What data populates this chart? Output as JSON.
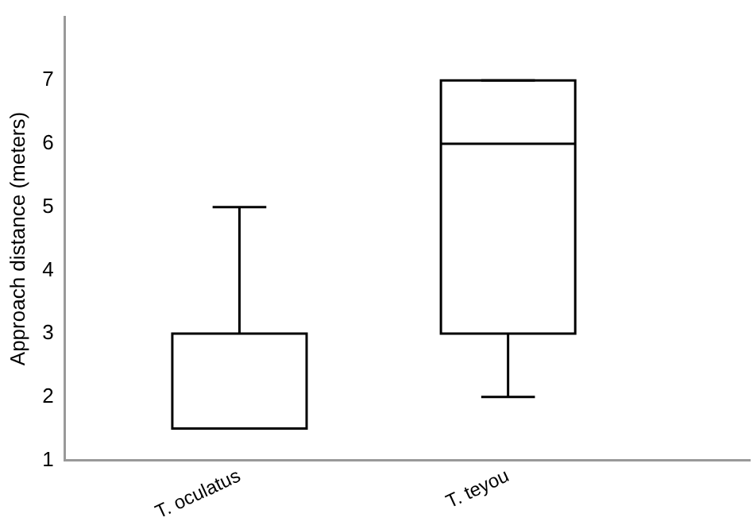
{
  "chart_data": {
    "type": "box",
    "ylabel": "Approach distance (meters)",
    "categories": [
      "T. oculatus",
      "T. teyou"
    ],
    "boxes": [
      {
        "low": 1.5,
        "q1": 1.5,
        "median": 1.5,
        "q3": 3,
        "high": 5
      },
      {
        "low": 2,
        "q1": 3,
        "median": 6,
        "q3": 7,
        "high": 7
      }
    ],
    "ylim": [
      1,
      8
    ],
    "yticks": [
      1,
      2,
      3,
      4,
      5,
      6,
      7
    ],
    "grid": false,
    "legend": false
  }
}
